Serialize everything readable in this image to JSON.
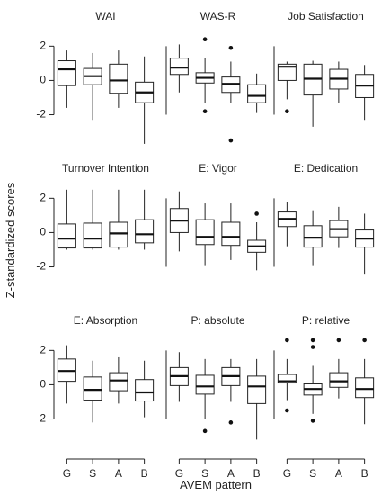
{
  "chart_data": {
    "type": "boxplot",
    "ylabel": "Z-standardized scores",
    "xlabel": "AVEM pattern",
    "categories": [
      "G",
      "S",
      "A",
      "B"
    ],
    "yticks": [
      "2",
      "0",
      "-2"
    ],
    "ylim": [
      -3.6,
      2.7
    ],
    "grid": false,
    "panels": [
      {
        "title": "WAI",
        "groups": [
          {
            "min": -1.6,
            "q1": -0.3,
            "median": 0.65,
            "q3": 1.15,
            "max": 1.75,
            "outliers": []
          },
          {
            "min": -2.3,
            "q1": -0.25,
            "median": 0.25,
            "q3": 0.7,
            "max": 1.6,
            "outliers": []
          },
          {
            "min": -1.6,
            "q1": -0.75,
            "median": 0.0,
            "q3": 0.95,
            "max": 1.75,
            "outliers": []
          },
          {
            "min": -3.7,
            "q1": -1.3,
            "median": -0.7,
            "q3": -0.1,
            "max": 1.4,
            "outliers": []
          }
        ]
      },
      {
        "title": "WAS-R",
        "groups": [
          {
            "min": -0.7,
            "q1": 0.35,
            "median": 0.75,
            "q3": 1.3,
            "max": 2.1,
            "outliers": []
          },
          {
            "min": -1.3,
            "q1": -0.15,
            "median": 0.15,
            "q3": 0.45,
            "max": 1.3,
            "outliers": [
              2.4,
              -1.8
            ]
          },
          {
            "min": -1.3,
            "q1": -0.7,
            "median": -0.2,
            "q3": 0.2,
            "max": 1.1,
            "outliers": [
              1.9,
              -3.5
            ]
          },
          {
            "min": -1.9,
            "q1": -1.3,
            "median": -0.9,
            "q3": -0.25,
            "max": 0.4,
            "outliers": []
          }
        ]
      },
      {
        "title": "Job Satisfaction",
        "groups": [
          {
            "min": -1.1,
            "q1": 0.0,
            "median": 0.8,
            "q3": 0.95,
            "max": 1.1,
            "outliers": [
              -1.8
            ]
          },
          {
            "min": -2.7,
            "q1": -0.85,
            "median": 0.1,
            "q3": 0.95,
            "max": 1.15,
            "outliers": []
          },
          {
            "min": -1.3,
            "q1": -0.5,
            "median": 0.1,
            "q3": 0.65,
            "max": 1.1,
            "outliers": []
          },
          {
            "min": -2.3,
            "q1": -1.0,
            "median": -0.3,
            "q3": 0.35,
            "max": 0.9,
            "outliers": []
          }
        ]
      },
      {
        "title": "Turnover Intention",
        "groups": [
          {
            "min": -1.0,
            "q1": -0.9,
            "median": -0.35,
            "q3": 0.5,
            "max": 2.5,
            "outliers": []
          },
          {
            "min": -1.0,
            "q1": -0.9,
            "median": -0.35,
            "q3": 0.55,
            "max": 2.5,
            "outliers": []
          },
          {
            "min": -1.0,
            "q1": -0.85,
            "median": -0.05,
            "q3": 0.6,
            "max": 2.5,
            "outliers": []
          },
          {
            "min": -1.0,
            "q1": -0.6,
            "median": -0.1,
            "q3": 0.75,
            "max": 2.5,
            "outliers": []
          }
        ]
      },
      {
        "title": "E: Vigor",
        "groups": [
          {
            "min": -1.1,
            "q1": 0.0,
            "median": 0.7,
            "q3": 1.4,
            "max": 2.4,
            "outliers": []
          },
          {
            "min": -1.9,
            "q1": -0.7,
            "median": -0.25,
            "q3": 0.75,
            "max": 1.7,
            "outliers": []
          },
          {
            "min": -1.6,
            "q1": -0.75,
            "median": -0.25,
            "q3": 0.6,
            "max": 1.7,
            "outliers": []
          },
          {
            "min": -2.2,
            "q1": -1.15,
            "median": -0.8,
            "q3": -0.45,
            "max": 0.6,
            "outliers": [
              1.1
            ]
          }
        ]
      },
      {
        "title": "E: Dedication",
        "groups": [
          {
            "min": -0.8,
            "q1": 0.35,
            "median": 0.8,
            "q3": 1.2,
            "max": 1.8,
            "outliers": []
          },
          {
            "min": -1.9,
            "q1": -0.85,
            "median": -0.3,
            "q3": 0.4,
            "max": 1.3,
            "outliers": []
          },
          {
            "min": -0.9,
            "q1": -0.25,
            "median": 0.2,
            "q3": 0.7,
            "max": 1.5,
            "outliers": []
          },
          {
            "min": -2.4,
            "q1": -0.85,
            "median": -0.35,
            "q3": 0.15,
            "max": 1.1,
            "outliers": []
          }
        ]
      },
      {
        "title": "E: Absorption",
        "groups": [
          {
            "min": -1.1,
            "q1": 0.2,
            "median": 0.8,
            "q3": 1.5,
            "max": 2.3,
            "outliers": []
          },
          {
            "min": -2.2,
            "q1": -0.9,
            "median": -0.3,
            "q3": 0.45,
            "max": 1.4,
            "outliers": []
          },
          {
            "min": -1.1,
            "q1": -0.35,
            "median": 0.25,
            "q3": 0.7,
            "max": 1.6,
            "outliers": []
          },
          {
            "min": -1.9,
            "q1": -0.95,
            "median": -0.45,
            "q3": 0.3,
            "max": 1.4,
            "outliers": []
          }
        ]
      },
      {
        "title": "P: absolute",
        "groups": [
          {
            "min": -1.0,
            "q1": -0.05,
            "median": 0.5,
            "q3": 1.0,
            "max": 1.9,
            "outliers": []
          },
          {
            "min": -2.0,
            "q1": -0.55,
            "median": -0.1,
            "q3": 0.55,
            "max": 1.5,
            "outliers": [
              -2.7
            ]
          },
          {
            "min": -1.0,
            "q1": -0.05,
            "median": 0.5,
            "q3": 1.0,
            "max": 1.5,
            "outliers": [
              -2.2
            ]
          },
          {
            "min": -3.2,
            "q1": -1.1,
            "median": -0.1,
            "q3": 0.5,
            "max": 1.5,
            "outliers": []
          }
        ]
      },
      {
        "title": "P: relative",
        "groups": [
          {
            "min": -0.9,
            "q1": 0.1,
            "median": 0.2,
            "q3": 0.6,
            "max": 1.5,
            "outliers": [
              2.6,
              -1.5
            ]
          },
          {
            "min": -1.7,
            "q1": -0.6,
            "median": -0.25,
            "q3": 0.05,
            "max": 1.1,
            "outliers": [
              2.6,
              2.2,
              -2.1
            ]
          },
          {
            "min": -0.8,
            "q1": -0.15,
            "median": 0.2,
            "q3": 0.7,
            "max": 1.5,
            "outliers": [
              2.6
            ]
          },
          {
            "min": -2.3,
            "q1": -0.75,
            "median": -0.25,
            "q3": 0.4,
            "max": 1.5,
            "outliers": [
              2.6
            ]
          }
        ]
      }
    ]
  }
}
